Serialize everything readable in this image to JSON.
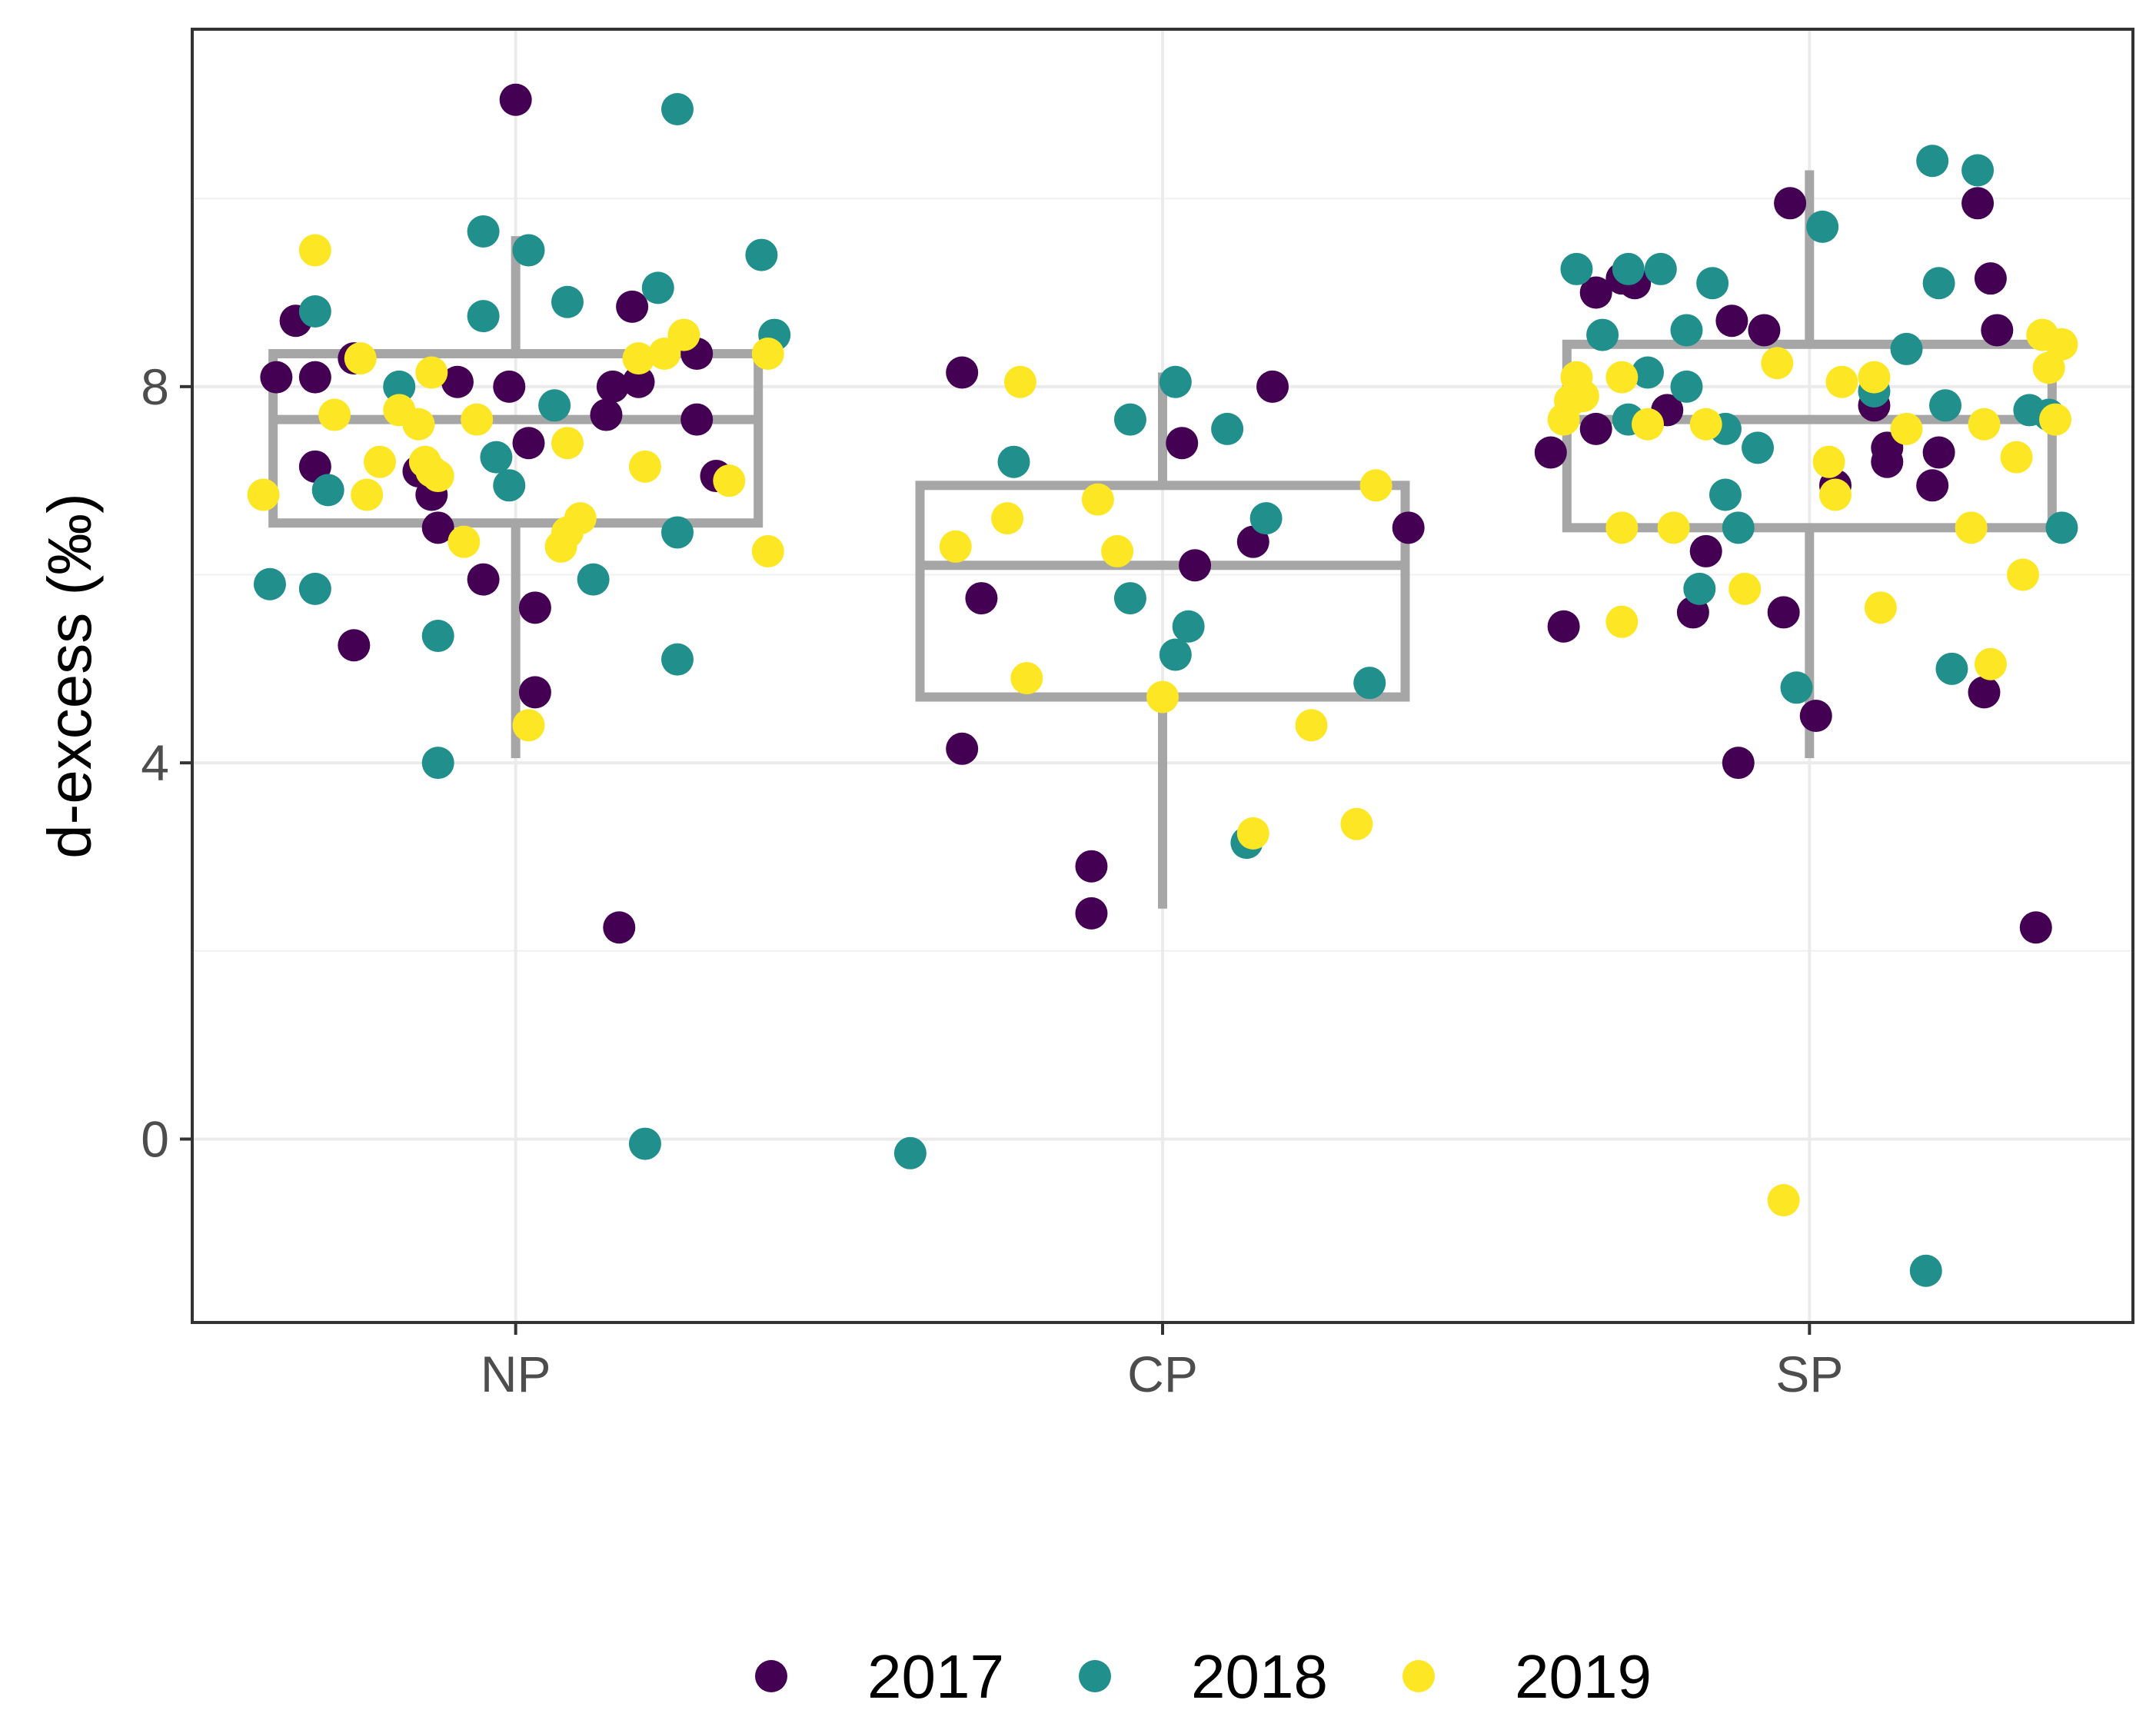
{
  "chart_data": {
    "type": "box-jitter",
    "title": "",
    "xlabel": "",
    "ylabel": "d-excess (‰)",
    "ylim": [
      -1.95,
      11.8
    ],
    "yticks": [
      0,
      4,
      8
    ],
    "ytick_labels": [
      "0",
      "4",
      "8"
    ],
    "categories": [
      "NP",
      "CP",
      "SP"
    ],
    "grid": true,
    "legend": {
      "position": "bottom",
      "entries": [
        {
          "label": "2017",
          "color": "#440154"
        },
        {
          "label": "2018",
          "color": "#21908C"
        },
        {
          "label": "2019",
          "color": "#FDE725"
        }
      ]
    },
    "box_color": "#a6a6a6",
    "boxes": [
      {
        "category": "NP",
        "whisker_low": 4.05,
        "q1": 6.55,
        "median": 7.65,
        "q3": 8.35,
        "whisker_high": 9.6
      },
      {
        "category": "CP",
        "whisker_low": 2.45,
        "q1": 4.7,
        "median": 6.1,
        "q3": 6.95,
        "whisker_high": 8.15
      },
      {
        "category": "SP",
        "whisker_low": 4.05,
        "q1": 6.5,
        "median": 7.65,
        "q3": 8.45,
        "whisker_high": 10.3
      }
    ],
    "series": [
      {
        "name": "2017",
        "color": "#440154",
        "points": [
          {
            "x": -0.37,
            "y": 8.1
          },
          {
            "x": -0.34,
            "y": 8.7
          },
          {
            "x": -0.31,
            "y": 8.1
          },
          {
            "x": -0.31,
            "y": 7.15
          },
          {
            "x": -0.25,
            "y": 8.3
          },
          {
            "x": -0.25,
            "y": 5.25
          },
          {
            "x": -0.15,
            "y": 7.1
          },
          {
            "x": -0.13,
            "y": 6.85
          },
          {
            "x": -0.12,
            "y": 6.5
          },
          {
            "x": -0.09,
            "y": 8.05
          },
          {
            "x": -0.05,
            "y": 5.95
          },
          {
            "x": -0.01,
            "y": 8.0
          },
          {
            "x": 0.0,
            "y": 11.05
          },
          {
            "x": 0.02,
            "y": 7.4
          },
          {
            "x": 0.03,
            "y": 5.65
          },
          {
            "x": 0.03,
            "y": 4.75
          },
          {
            "x": 0.14,
            "y": 7.7
          },
          {
            "x": 0.15,
            "y": 8.0
          },
          {
            "x": 0.16,
            "y": 2.25
          },
          {
            "x": 0.18,
            "y": 8.85
          },
          {
            "x": 0.19,
            "y": 8.05
          },
          {
            "x": 0.28,
            "y": 8.35
          },
          {
            "x": 0.28,
            "y": 7.65
          },
          {
            "x": 0.31,
            "y": 7.05
          },
          {
            "x": -0.31,
            "y": 8.15
          },
          {
            "x": -0.28,
            "y": 5.75
          },
          {
            "x": -0.31,
            "y": 4.15
          },
          {
            "x": -0.11,
            "y": 2.9
          },
          {
            "x": -0.11,
            "y": 2.4
          },
          {
            "x": 0.03,
            "y": 7.4
          },
          {
            "x": 0.05,
            "y": 6.1
          },
          {
            "x": 0.14,
            "y": 6.35
          },
          {
            "x": 0.17,
            "y": 8.0
          },
          {
            "x": 0.38,
            "y": 6.5
          },
          {
            "x": -0.4,
            "y": 7.3
          },
          {
            "x": -0.38,
            "y": 5.45
          },
          {
            "x": -0.33,
            "y": 9.0
          },
          {
            "x": -0.33,
            "y": 7.55
          },
          {
            "x": -0.29,
            "y": 9.15
          },
          {
            "x": -0.27,
            "y": 9.1
          },
          {
            "x": -0.22,
            "y": 7.75
          },
          {
            "x": -0.18,
            "y": 5.6
          },
          {
            "x": -0.16,
            "y": 6.25
          },
          {
            "x": -0.12,
            "y": 8.7
          },
          {
            "x": -0.11,
            "y": 4.0
          },
          {
            "x": -0.07,
            "y": 8.6
          },
          {
            "x": -0.04,
            "y": 5.6
          },
          {
            "x": -0.03,
            "y": 9.95
          },
          {
            "x": 0.01,
            "y": 4.5
          },
          {
            "x": 0.04,
            "y": 6.95
          },
          {
            "x": 0.1,
            "y": 7.8
          },
          {
            "x": 0.12,
            "y": 7.2
          },
          {
            "x": 0.12,
            "y": 7.35
          },
          {
            "x": 0.19,
            "y": 6.95
          },
          {
            "x": 0.2,
            "y": 7.3
          },
          {
            "x": 0.26,
            "y": 9.95
          },
          {
            "x": 0.27,
            "y": 4.75
          },
          {
            "x": 0.28,
            "y": 9.15
          },
          {
            "x": 0.29,
            "y": 8.6
          },
          {
            "x": 0.35,
            "y": 2.25
          }
        ]
      },
      {
        "name": "2018",
        "color": "#21908C",
        "points": [
          {
            "x": -0.38,
            "y": 5.9
          },
          {
            "x": -0.31,
            "y": 8.8
          },
          {
            "x": -0.31,
            "y": 5.85
          },
          {
            "x": -0.29,
            "y": 6.9
          },
          {
            "x": -0.18,
            "y": 8.0
          },
          {
            "x": -0.12,
            "y": 4.0
          },
          {
            "x": -0.12,
            "y": 5.35
          },
          {
            "x": -0.05,
            "y": 9.65
          },
          {
            "x": -0.05,
            "y": 8.75
          },
          {
            "x": -0.03,
            "y": 7.25
          },
          {
            "x": -0.01,
            "y": 6.95
          },
          {
            "x": 0.02,
            "y": 9.45
          },
          {
            "x": 0.06,
            "y": 7.8
          },
          {
            "x": 0.08,
            "y": 8.9
          },
          {
            "x": 0.12,
            "y": 5.95
          },
          {
            "x": 0.2,
            "y": -0.05
          },
          {
            "x": 0.22,
            "y": 9.05
          },
          {
            "x": 0.25,
            "y": 10.95
          },
          {
            "x": 0.25,
            "y": 5.1
          },
          {
            "x": 0.25,
            "y": 6.45
          },
          {
            "x": 0.38,
            "y": 9.4
          },
          {
            "x": 0.4,
            "y": 8.55
          },
          {
            "x": -0.39,
            "y": -0.15
          },
          {
            "x": -0.23,
            "y": 7.2
          },
          {
            "x": -0.05,
            "y": 7.65
          },
          {
            "x": -0.05,
            "y": 5.75
          },
          {
            "x": 0.02,
            "y": 8.05
          },
          {
            "x": 0.02,
            "y": 5.15
          },
          {
            "x": 0.04,
            "y": 5.45
          },
          {
            "x": 0.1,
            "y": 7.55
          },
          {
            "x": 0.13,
            "y": 3.15
          },
          {
            "x": 0.16,
            "y": 6.6
          },
          {
            "x": 0.32,
            "y": 4.85
          },
          {
            "x": -0.36,
            "y": 9.25
          },
          {
            "x": -0.32,
            "y": 8.55
          },
          {
            "x": -0.28,
            "y": 9.25
          },
          {
            "x": -0.28,
            "y": 7.65
          },
          {
            "x": -0.25,
            "y": 8.15
          },
          {
            "x": -0.23,
            "y": 9.25
          },
          {
            "x": -0.19,
            "y": 8.6
          },
          {
            "x": -0.19,
            "y": 8.0
          },
          {
            "x": -0.17,
            "y": 5.85
          },
          {
            "x": -0.15,
            "y": 9.1
          },
          {
            "x": -0.13,
            "y": 7.55
          },
          {
            "x": -0.13,
            "y": 6.85
          },
          {
            "x": -0.11,
            "y": 6.5
          },
          {
            "x": -0.08,
            "y": 7.35
          },
          {
            "x": -0.02,
            "y": 4.8
          },
          {
            "x": 0.02,
            "y": 9.7
          },
          {
            "x": 0.1,
            "y": 7.95
          },
          {
            "x": 0.15,
            "y": 8.4
          },
          {
            "x": 0.18,
            "y": -1.4
          },
          {
            "x": 0.19,
            "y": 10.4
          },
          {
            "x": 0.2,
            "y": 9.1
          },
          {
            "x": 0.21,
            "y": 7.8
          },
          {
            "x": 0.22,
            "y": 5.0
          },
          {
            "x": 0.26,
            "y": 10.3
          },
          {
            "x": 0.34,
            "y": 7.75
          },
          {
            "x": 0.39,
            "y": 6.5
          },
          {
            "x": 0.37,
            "y": 7.7
          }
        ]
      },
      {
        "name": "2019",
        "color": "#FDE725",
        "points": [
          {
            "x": -0.39,
            "y": 6.85
          },
          {
            "x": -0.31,
            "y": 9.45
          },
          {
            "x": -0.28,
            "y": 7.7
          },
          {
            "x": -0.24,
            "y": 8.3
          },
          {
            "x": -0.23,
            "y": 6.85
          },
          {
            "x": -0.21,
            "y": 7.2
          },
          {
            "x": -0.18,
            "y": 7.75
          },
          {
            "x": -0.15,
            "y": 7.6
          },
          {
            "x": -0.14,
            "y": 7.2
          },
          {
            "x": -0.13,
            "y": 8.15
          },
          {
            "x": -0.13,
            "y": 7.1
          },
          {
            "x": -0.12,
            "y": 7.05
          },
          {
            "x": -0.08,
            "y": 6.35
          },
          {
            "x": -0.06,
            "y": 7.65
          },
          {
            "x": 0.02,
            "y": 4.4
          },
          {
            "x": 0.07,
            "y": 6.3
          },
          {
            "x": 0.08,
            "y": 6.45
          },
          {
            "x": 0.08,
            "y": 7.4
          },
          {
            "x": 0.1,
            "y": 6.6
          },
          {
            "x": 0.19,
            "y": 8.3
          },
          {
            "x": 0.2,
            "y": 7.15
          },
          {
            "x": 0.23,
            "y": 8.35
          },
          {
            "x": 0.26,
            "y": 8.55
          },
          {
            "x": 0.33,
            "y": 7.0
          },
          {
            "x": 0.39,
            "y": 8.35
          },
          {
            "x": 0.39,
            "y": 6.25
          },
          {
            "x": -0.32,
            "y": 6.3
          },
          {
            "x": -0.24,
            "y": 6.6
          },
          {
            "x": -0.22,
            "y": 8.05
          },
          {
            "x": -0.21,
            "y": 4.9
          },
          {
            "x": -0.1,
            "y": 6.8
          },
          {
            "x": -0.07,
            "y": 6.25
          },
          {
            "x": 0.0,
            "y": 4.7
          },
          {
            "x": 0.14,
            "y": 3.25
          },
          {
            "x": 0.23,
            "y": 4.4
          },
          {
            "x": 0.3,
            "y": 3.35
          },
          {
            "x": 0.33,
            "y": 6.95
          },
          {
            "x": -0.38,
            "y": 7.65
          },
          {
            "x": -0.37,
            "y": 7.85
          },
          {
            "x": -0.36,
            "y": 8.1
          },
          {
            "x": -0.35,
            "y": 7.9
          },
          {
            "x": -0.29,
            "y": 8.1
          },
          {
            "x": -0.29,
            "y": 6.5
          },
          {
            "x": -0.29,
            "y": 5.5
          },
          {
            "x": -0.25,
            "y": 7.6
          },
          {
            "x": -0.21,
            "y": 6.5
          },
          {
            "x": -0.16,
            "y": 7.6
          },
          {
            "x": -0.1,
            "y": 5.85
          },
          {
            "x": -0.05,
            "y": 8.25
          },
          {
            "x": -0.04,
            "y": -0.65
          },
          {
            "x": 0.03,
            "y": 7.2
          },
          {
            "x": 0.04,
            "y": 6.85
          },
          {
            "x": 0.05,
            "y": 8.05
          },
          {
            "x": 0.1,
            "y": 8.1
          },
          {
            "x": 0.11,
            "y": 5.65
          },
          {
            "x": 0.15,
            "y": 7.55
          },
          {
            "x": 0.25,
            "y": 6.5
          },
          {
            "x": 0.27,
            "y": 7.6
          },
          {
            "x": 0.28,
            "y": 5.05
          },
          {
            "x": 0.32,
            "y": 7.25
          },
          {
            "x": 0.33,
            "y": 6.0
          },
          {
            "x": 0.36,
            "y": 8.55
          },
          {
            "x": 0.37,
            "y": 8.2
          },
          {
            "x": 0.38,
            "y": 7.65
          },
          {
            "x": 0.39,
            "y": 8.45
          }
        ]
      }
    ]
  }
}
